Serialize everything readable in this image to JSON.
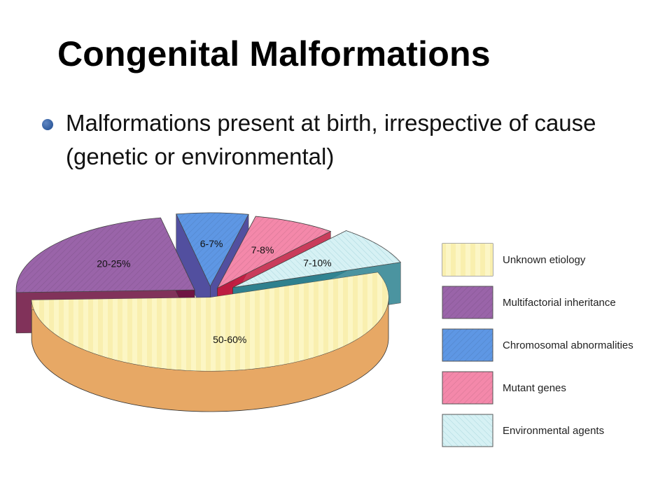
{
  "slide": {
    "title": "Congenital Malformations",
    "bullet": "Malformations present at birth, irrespective of cause (genetic or environmental)"
  },
  "chart_data": {
    "type": "pie",
    "style": "exploded 3D pie with legend on the right",
    "legend_position": "right",
    "slices": [
      {
        "category": "Unknown etiology",
        "label": "50-60%",
        "value": 55,
        "color": "#fbf3b6",
        "side_color": "#e7a865",
        "pattern": "stripes",
        "explode": 0
      },
      {
        "category": "Multifactorial inheritance",
        "label": "20-25%",
        "value": 22.5,
        "color": "#9a64a9",
        "side_color": "#6c0f3e",
        "pattern": "texture",
        "explode": 28
      },
      {
        "category": "Chromosomal abnormalities",
        "label": "6-7%",
        "value": 6.5,
        "color": "#5e97e4",
        "side_color": "#34318f",
        "pattern": "texture",
        "explode": 26
      },
      {
        "category": "Mutant genes",
        "label": "7-8%",
        "value": 7.5,
        "color": "#f488aa",
        "side_color": "#c01b3f",
        "pattern": "texture",
        "explode": 24
      },
      {
        "category": "Environmental agents",
        "label": "7-10%",
        "value": 8.5,
        "color": "#d6f1f4",
        "side_color": "#2c8290",
        "pattern": "hatch",
        "explode": 40
      }
    ]
  }
}
